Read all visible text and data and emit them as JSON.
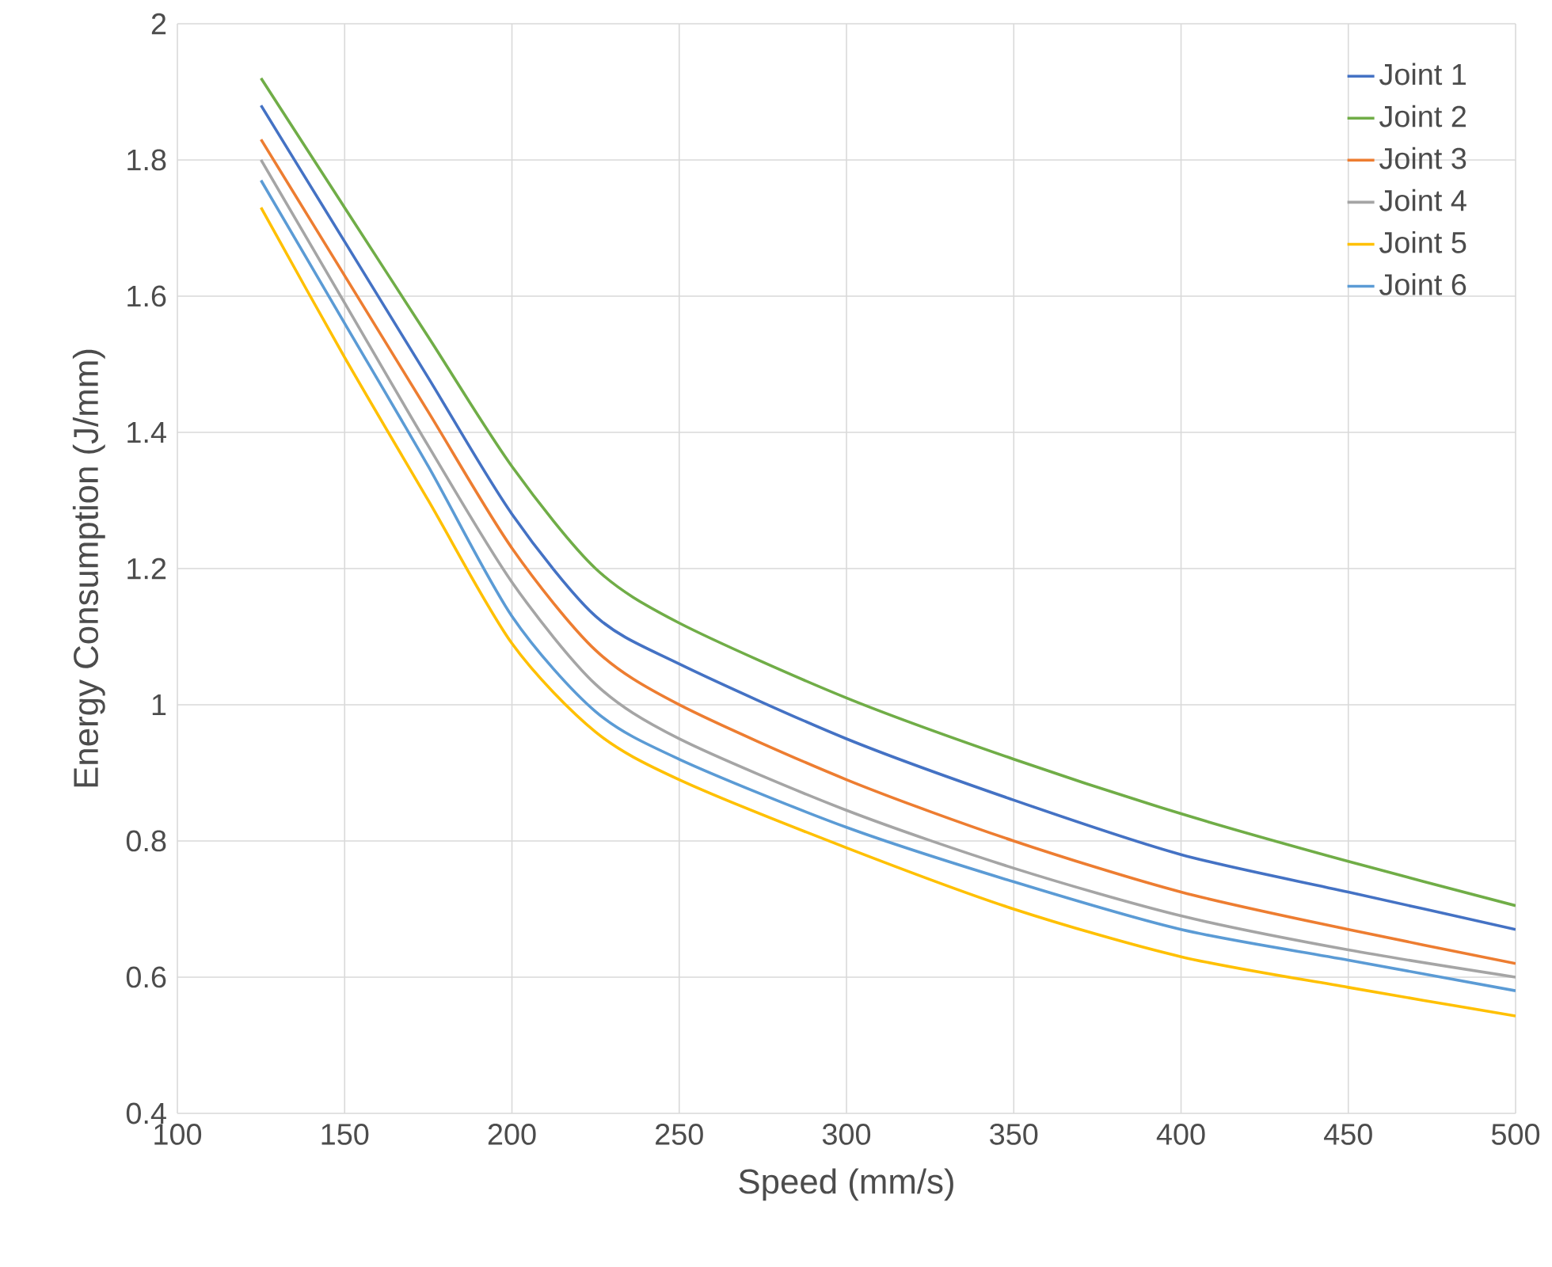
{
  "chart_data": {
    "type": "line",
    "xlabel": "Speed (mm/s)",
    "ylabel": "Energy Consumption (J/mm)",
    "x": [
      125,
      150,
      175,
      200,
      225,
      250,
      300,
      350,
      400,
      450,
      500
    ],
    "xlim": [
      100,
      500
    ],
    "xticks": [
      100,
      150,
      200,
      250,
      300,
      350,
      400,
      450,
      500
    ],
    "ylim": [
      0.4,
      2
    ],
    "yticks": [
      0.4,
      0.6,
      0.8,
      1,
      1.2,
      1.4,
      1.6,
      1.8,
      2
    ],
    "grid": true,
    "legend": "top right",
    "marker": "none",
    "line_style": "solid",
    "series": [
      {
        "name": "Joint 1",
        "color": "#4472c4",
        "values": [
          1.88,
          1.68,
          1.48,
          1.28,
          1.13,
          1.06,
          0.95,
          0.86,
          0.78,
          0.725,
          0.67
        ]
      },
      {
        "name": "Joint 2",
        "color": "#70ad47",
        "values": [
          1.92,
          1.73,
          1.54,
          1.35,
          1.2,
          1.12,
          1.01,
          0.92,
          0.84,
          0.77,
          0.705
        ]
      },
      {
        "name": "Joint 3",
        "color": "#ed7d31",
        "values": [
          1.83,
          1.63,
          1.43,
          1.23,
          1.08,
          1.0,
          0.89,
          0.8,
          0.725,
          0.67,
          0.62
        ]
      },
      {
        "name": "Joint 4",
        "color": "#a5a5a5",
        "values": [
          1.8,
          1.59,
          1.38,
          1.18,
          1.03,
          0.95,
          0.845,
          0.76,
          0.69,
          0.64,
          0.6
        ]
      },
      {
        "name": "Joint 5",
        "color": "#ffc000",
        "values": [
          1.73,
          1.51,
          1.3,
          1.09,
          0.96,
          0.89,
          0.79,
          0.7,
          0.63,
          0.585,
          0.543
        ]
      },
      {
        "name": "Joint 6",
        "color": "#5b9bd5",
        "values": [
          1.77,
          1.56,
          1.35,
          1.13,
          0.99,
          0.92,
          0.82,
          0.74,
          0.67,
          0.625,
          0.58
        ]
      }
    ]
  }
}
